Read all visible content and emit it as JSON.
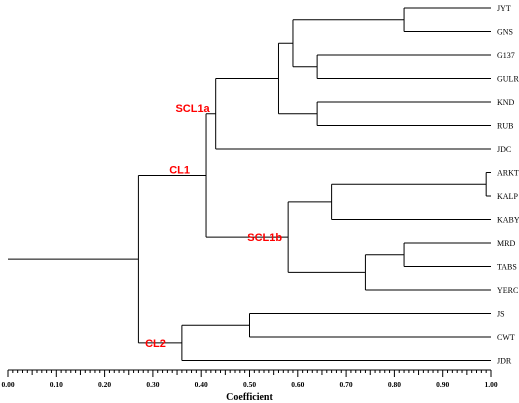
{
  "chart_data": {
    "type": "dendrogram",
    "xlabel": "Coefficient",
    "xlim": [
      0.0,
      1.0
    ],
    "ticks": [
      "0.00",
      "0.10",
      "0.20",
      "0.30",
      "0.40",
      "0.50",
      "0.60",
      "0.70",
      "0.80",
      "0.90",
      "1.00"
    ],
    "leaves": [
      "JYT",
      "GNS",
      "G137",
      "GULR",
      "KND",
      "RUB",
      "JDC",
      "ARKT",
      "KALP",
      "KABY",
      "MRD",
      "TABS",
      "YERC",
      "JS",
      "CWT",
      "JDR"
    ],
    "merges": [
      {
        "id": "m_arkt_kalp",
        "children": [
          "ARKT",
          "KALP"
        ],
        "height": 0.99
      },
      {
        "id": "m_jyt_gns",
        "children": [
          "JYT",
          "GNS"
        ],
        "height": 0.82
      },
      {
        "id": "m_mrd_tabs",
        "children": [
          "MRD",
          "TABS"
        ],
        "height": 0.82
      },
      {
        "id": "m_rooted_kaby",
        "children": [
          "m_arkt_kalp",
          "KABY"
        ],
        "height": 0.67
      },
      {
        "id": "m_g137_gulr",
        "children": [
          "G137",
          "GULR"
        ],
        "height": 0.64
      },
      {
        "id": "m_knd_rub",
        "children": [
          "KND",
          "RUB"
        ],
        "height": 0.64
      },
      {
        "id": "m_upper_a",
        "children": [
          "m_jyt_gns",
          "m_g137_gulr"
        ],
        "height": 0.59
      },
      {
        "id": "m_mrd_yerc",
        "children": [
          "m_mrd_tabs",
          "YERC"
        ],
        "height": 0.74
      },
      {
        "id": "m_scl1b",
        "children": [
          "m_rooted_kaby",
          "m_mrd_yerc"
        ],
        "height": 0.58
      },
      {
        "id": "m_upper_b",
        "children": [
          "m_upper_a",
          "m_knd_rub"
        ],
        "height": 0.56
      },
      {
        "id": "m_scl1a",
        "children": [
          "m_upper_b",
          "JDC"
        ],
        "height": 0.43
      },
      {
        "id": "m_js_cwt",
        "children": [
          "JS",
          "CWT"
        ],
        "height": 0.5
      },
      {
        "id": "m_cl2",
        "children": [
          "m_js_cwt",
          "JDR"
        ],
        "height": 0.36
      },
      {
        "id": "m_cl1",
        "children": [
          "m_scl1a",
          "m_scl1b"
        ],
        "height": 0.41
      },
      {
        "id": "m_root",
        "children": [
          "m_cl1",
          "m_cl2"
        ],
        "height": 0.27
      }
    ],
    "cluster_labels": [
      {
        "text": "SCL1a",
        "node": "m_scl1a"
      },
      {
        "text": "SCL1b",
        "node": "m_scl1b"
      },
      {
        "text": "CL1",
        "node": "m_cl1"
      },
      {
        "text": "CL2",
        "node": "m_cl2"
      }
    ],
    "colors": {
      "branch": "#000000",
      "cluster_label": "#ff0000"
    }
  }
}
